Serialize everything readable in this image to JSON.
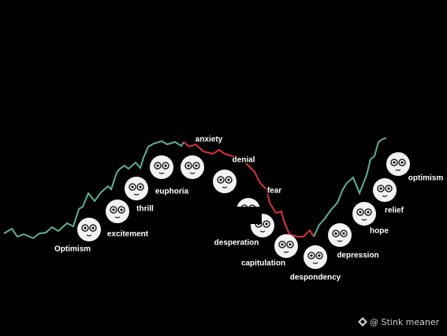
{
  "stages": [
    "Optimism",
    "excitement",
    "thrill",
    "euphoria",
    "anxiety",
    "denial",
    "fear",
    "desperation",
    "capitulation",
    "despondency",
    "depression",
    "hope",
    "relief",
    "optimism"
  ],
  "watermark": "@ Stink meaner"
}
